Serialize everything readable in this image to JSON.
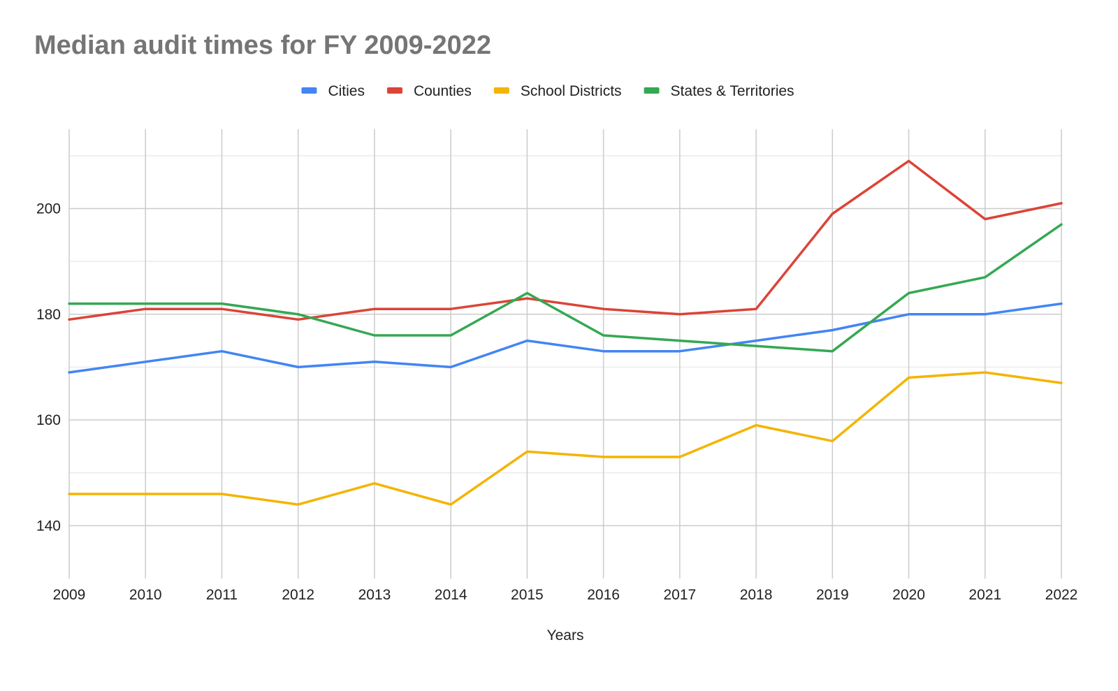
{
  "chart_data": {
    "type": "line",
    "title": "Median audit times for FY 2009-2022",
    "xlabel": "Years",
    "ylabel": "",
    "x": [
      2009,
      2010,
      2011,
      2012,
      2013,
      2014,
      2015,
      2016,
      2017,
      2018,
      2019,
      2020,
      2021,
      2022
    ],
    "ylim": [
      130,
      215
    ],
    "y_ticks": [
      140,
      160,
      180,
      200
    ],
    "y_minor_ticks": [
      150,
      170,
      190,
      210
    ],
    "grid": true,
    "legend_position": "top",
    "series": [
      {
        "name": "Cities",
        "color": "#4285F4",
        "values": [
          169,
          171,
          173,
          170,
          171,
          170,
          175,
          173,
          173,
          175,
          177,
          180,
          180,
          182
        ]
      },
      {
        "name": "Counties",
        "color": "#DB4437",
        "values": [
          179,
          181,
          181,
          179,
          181,
          181,
          183,
          181,
          180,
          181,
          199,
          209,
          198,
          201
        ]
      },
      {
        "name": "School Districts",
        "color": "#F4B400",
        "values": [
          146,
          146,
          146,
          144,
          148,
          144,
          154,
          153,
          153,
          159,
          156,
          168,
          169,
          167
        ]
      },
      {
        "name": "States & Territories",
        "color": "#34A853",
        "values": [
          182,
          182,
          182,
          180,
          176,
          176,
          184,
          176,
          175,
          174,
          173,
          184,
          187,
          197
        ]
      }
    ]
  }
}
